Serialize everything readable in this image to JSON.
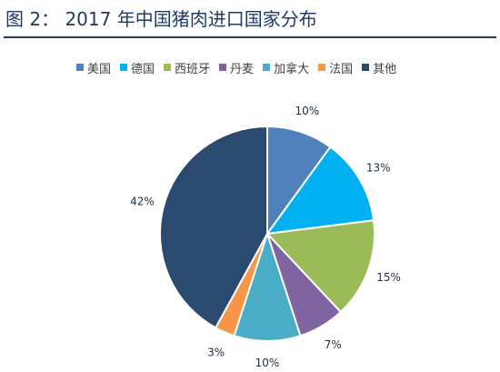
{
  "figure": {
    "label": "图  2：",
    "title": "2017 年中国猪肉进口国家分布"
  },
  "colors": {
    "title": "#1f3b66",
    "series": [
      "#4f81bd",
      "#00b0f0",
      "#9bbb59",
      "#8064a2",
      "#4bacc6",
      "#f79646",
      "#2a4a6f"
    ]
  },
  "chart_data": {
    "type": "pie",
    "title": "2017 年中国猪肉进口国家分布",
    "legend_position": "top",
    "categories": [
      "美国",
      "德国",
      "西班牙",
      "丹麦",
      "加拿大",
      "法国",
      "其他"
    ],
    "values": [
      10,
      13,
      15,
      7,
      10,
      3,
      42
    ],
    "labels": [
      "10%",
      "13%",
      "15%",
      "7%",
      "10%",
      "3%",
      "42%"
    ]
  }
}
